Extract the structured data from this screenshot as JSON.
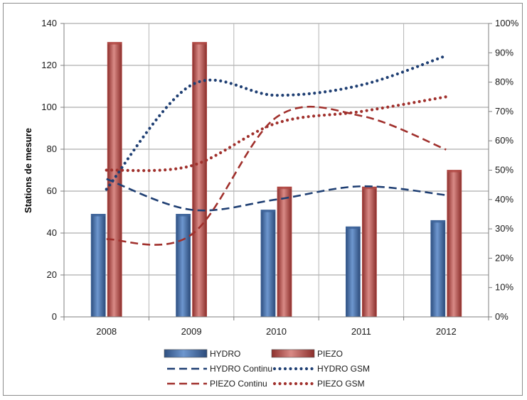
{
  "chart_data": {
    "type": "bar",
    "categories": [
      "2008",
      "2009",
      "2010",
      "2011",
      "2012"
    ],
    "ylabel": "Stations de mesure",
    "ylim": [
      0,
      140
    ],
    "y_ticks": [
      0,
      20,
      40,
      60,
      80,
      100,
      120,
      140
    ],
    "y2lim": [
      0,
      100
    ],
    "y2_ticks": [
      "0%",
      "10%",
      "20%",
      "30%",
      "40%",
      "50%",
      "60%",
      "70%",
      "80%",
      "90%",
      "100%"
    ],
    "grid": true,
    "legend_position": "bottom",
    "bar_series": [
      {
        "name": "HYDRO",
        "values": [
          49,
          49,
          51,
          43,
          46
        ],
        "color": "#4f7ab5",
        "axis": "left"
      },
      {
        "name": "PIEZO",
        "values": [
          131,
          131,
          62,
          62,
          70
        ],
        "color": "#c0504d",
        "axis": "left"
      }
    ],
    "line_series": [
      {
        "name": "HYDRO Continu",
        "style": "dashed",
        "color": "#1f3f73",
        "axis": "right",
        "values": [
          47,
          36.5,
          40,
          44.5,
          41.5
        ]
      },
      {
        "name": "HYDRO GSM",
        "style": "dotted",
        "color": "#1f3f73",
        "axis": "right",
        "values": [
          43.5,
          79,
          75.5,
          79,
          89
        ]
      },
      {
        "name": "PIEZO Continu",
        "style": "dashed",
        "color": "#a0302c",
        "axis": "right",
        "values": [
          26.5,
          28,
          68,
          68.5,
          57
        ]
      },
      {
        "name": "PIEZO GSM",
        "style": "dotted",
        "color": "#a0302c",
        "axis": "right",
        "values": [
          50,
          51.5,
          66,
          70,
          75
        ]
      }
    ]
  }
}
